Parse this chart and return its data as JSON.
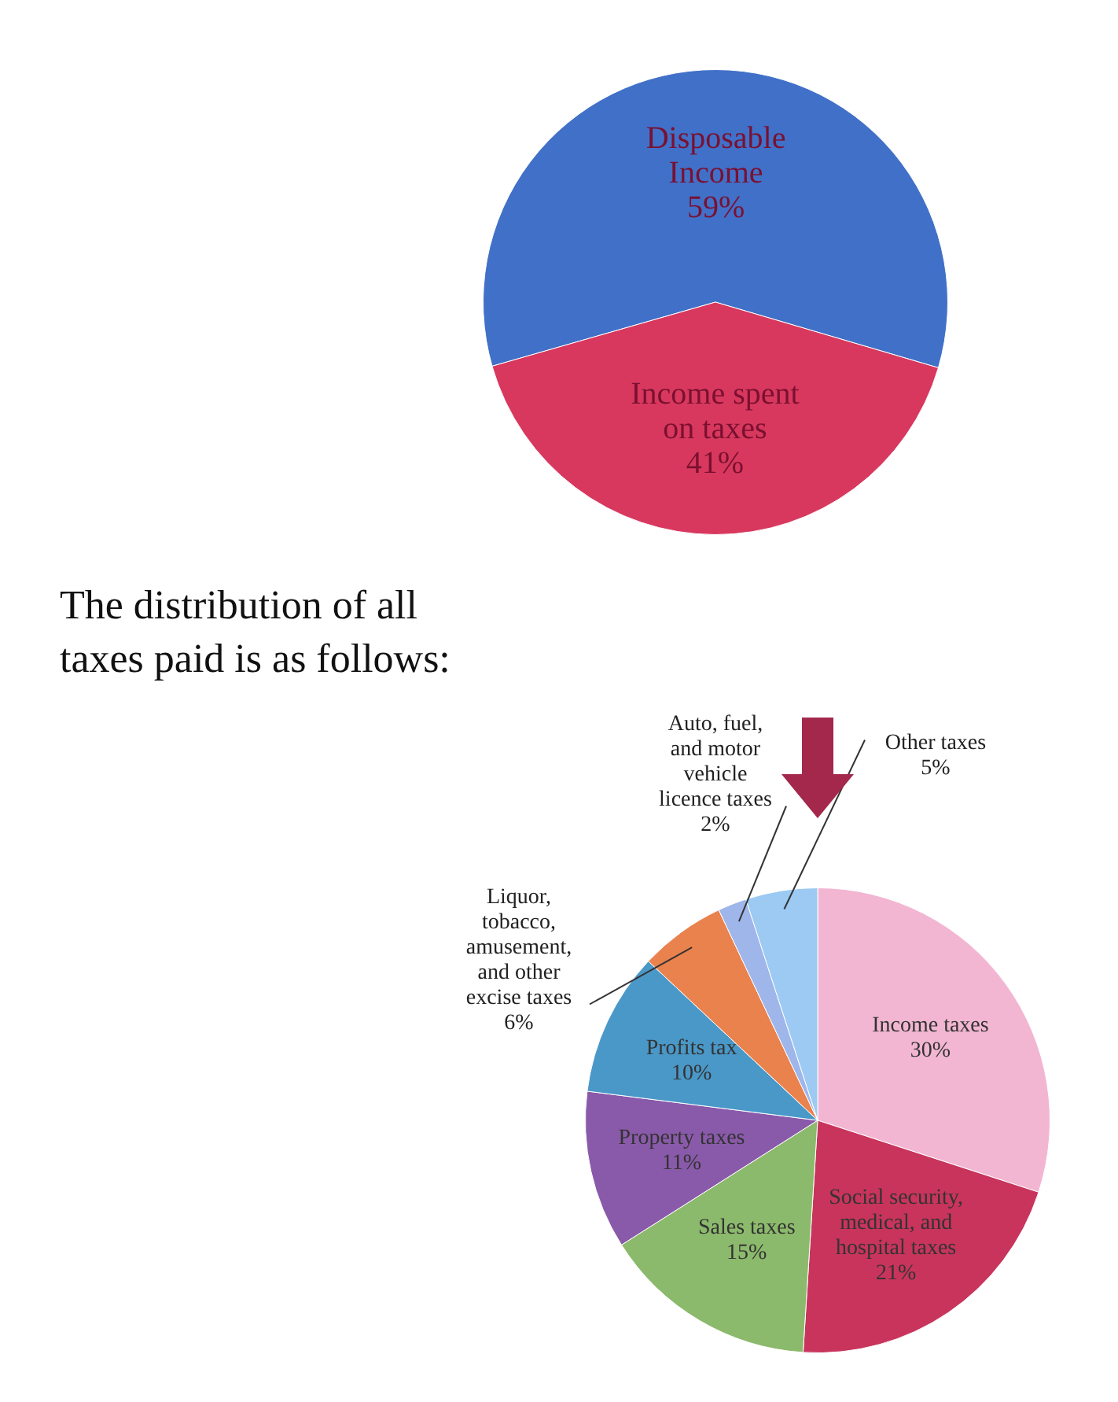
{
  "chart_data": [
    {
      "type": "pie",
      "categories": [
        "Disposable Income",
        "Income spent on taxes"
      ],
      "values": [
        59,
        41
      ],
      "colors": [
        "#4170c8",
        "#d8385e"
      ],
      "value_labels": [
        "59%",
        "41%"
      ]
    },
    {
      "type": "pie",
      "categories": [
        "Income taxes",
        "Social security, medical, and hospital taxes",
        "Sales taxes",
        "Property taxes",
        "Profits tax",
        "Liquor, tobacco, amusement, and other excise taxes",
        "Auto, fuel, and motor vehicle licence taxes",
        "Other taxes"
      ],
      "values": [
        30,
        21,
        15,
        11,
        10,
        6,
        2,
        5
      ],
      "colors": [
        "#f2b6d2",
        "#c8345c",
        "#8cba6c",
        "#8a5aaa",
        "#4a98c8",
        "#ea824e",
        "#9fb6ea",
        "#9ccaf2"
      ],
      "value_labels": [
        "30%",
        "21%",
        "15%",
        "11%",
        "10%",
        "6%",
        "2%",
        "5%"
      ],
      "annotations": [
        "The distribution of all taxes paid is as follows:"
      ]
    }
  ]
}
